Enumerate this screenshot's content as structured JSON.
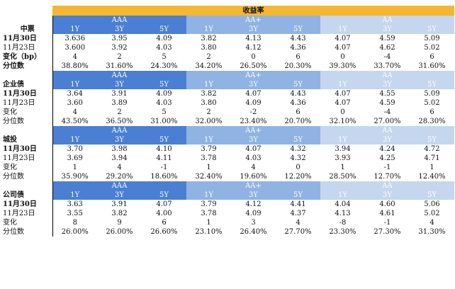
{
  "header": {
    "title": "收益率"
  },
  "groups": [
    "AAA",
    "AA+",
    "AA"
  ],
  "tenors": [
    "1Y",
    "3Y",
    "5Y"
  ],
  "sections": [
    {
      "name": "中票",
      "rows": [
        {
          "label": "11月30日",
          "bold": true,
          "values": [
            "3.636",
            "3.95",
            "4.09",
            "3.82",
            "4.13",
            "4.43",
            "4.07",
            "4.59",
            "5.09"
          ]
        },
        {
          "label": "11月23日",
          "bold": false,
          "values": [
            "3.600",
            "3.92",
            "4.03",
            "3.80",
            "4.12",
            "4.36",
            "4.07",
            "4.62",
            "5.02"
          ]
        },
        {
          "label": "变化（bp）",
          "bold": true,
          "values": [
            "4",
            "2",
            "5",
            "2",
            "0",
            "6",
            "0",
            "-4",
            "6"
          ]
        },
        {
          "label": "分位数",
          "bold": true,
          "values": [
            "38.80%",
            "31.60%",
            "24.30%",
            "34.20%",
            "26.50%",
            "20.30%",
            "39.30%",
            "33.70%",
            "31.60%"
          ]
        }
      ]
    },
    {
      "name": "企业债",
      "rows": [
        {
          "label": "11月30日",
          "bold": true,
          "values": [
            "3.64",
            "3.91",
            "4.09",
            "3.82",
            "4.07",
            "4.43",
            "4.07",
            "4.55",
            "5.09"
          ]
        },
        {
          "label": "11月23日",
          "bold": false,
          "values": [
            "3.60",
            "3.89",
            "4.03",
            "3.80",
            "4.09",
            "4.36",
            "4.07",
            "4.59",
            "5.02"
          ]
        },
        {
          "label": "变化",
          "bold": false,
          "values": [
            "4",
            "2",
            "5",
            "2",
            "-2",
            "6",
            "0",
            "-4",
            "6"
          ]
        },
        {
          "label": "分位数",
          "bold": false,
          "values": [
            "43.50%",
            "36.50%",
            "31.00%",
            "32.00%",
            "23.40%",
            "20.70%",
            "32.10%",
            "27.00%",
            "28.30%"
          ]
        }
      ]
    },
    {
      "name": "城投",
      "rows": [
        {
          "label": "11月30日",
          "bold": true,
          "values": [
            "3.70",
            "3.98",
            "4.10",
            "3.79",
            "4.07",
            "4.32",
            "3.94",
            "4.24",
            "4.72"
          ]
        },
        {
          "label": "11月23日",
          "bold": false,
          "values": [
            "3.69",
            "3.94",
            "4.11",
            "3.78",
            "4.03",
            "4.32",
            "3.93",
            "4.25",
            "4.71"
          ]
        },
        {
          "label": "变化",
          "bold": false,
          "values": [
            "1",
            "4",
            "-1",
            "1",
            "4",
            "0",
            "1",
            "-1",
            "1"
          ]
        },
        {
          "label": "分位数",
          "bold": false,
          "values": [
            "35.90%",
            "29.20%",
            "18.60%",
            "32.40%",
            "19.60%",
            "12.20%",
            "28.50%",
            "12.70%",
            "12.40%"
          ]
        }
      ]
    },
    {
      "name": "公司债",
      "rows": [
        {
          "label": "11月30日",
          "bold": true,
          "values": [
            "3.63",
            "3.91",
            "4.07",
            "3.79",
            "4.12",
            "4.41",
            "4.04",
            "4.60",
            "5.06"
          ]
        },
        {
          "label": "11月23日",
          "bold": false,
          "values": [
            "3.55",
            "3.82",
            "4.00",
            "3.78",
            "4.09",
            "4.37",
            "4.13",
            "4.61",
            "5.02"
          ]
        },
        {
          "label": "变化",
          "bold": false,
          "values": [
            "8",
            "9",
            "6",
            "1",
            "3",
            "4",
            "-8",
            "-1",
            "4"
          ]
        },
        {
          "label": "分位数",
          "bold": false,
          "values": [
            "26.00%",
            "26.00%",
            "26.60%",
            "23.10%",
            "26.40%",
            "27.70%",
            "23.30%",
            "27.30%",
            "31.30%"
          ]
        }
      ]
    }
  ]
}
